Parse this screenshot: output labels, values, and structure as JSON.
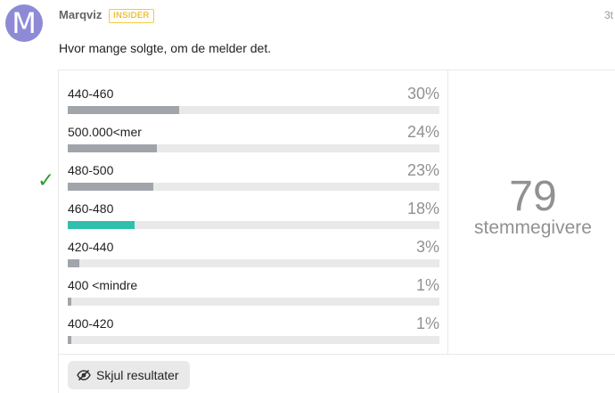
{
  "post": {
    "avatar_letter": "M",
    "username": "Marqviz",
    "badge": "INSIDER",
    "date": "3t",
    "text": "Hvor mange solgte, om de melder det."
  },
  "poll": {
    "options": [
      {
        "label": "440-460",
        "percent": 30,
        "percent_text": "30%",
        "voted": false
      },
      {
        "label": "500.000<mer",
        "percent": 24,
        "percent_text": "24%",
        "voted": false
      },
      {
        "label": "480-500",
        "percent": 23,
        "percent_text": "23%",
        "voted": false
      },
      {
        "label": "460-480",
        "percent": 18,
        "percent_text": "18%",
        "voted": true
      },
      {
        "label": "420-440",
        "percent": 3,
        "percent_text": "3%",
        "voted": false
      },
      {
        "label": "400 <mindre",
        "percent": 1,
        "percent_text": "1%",
        "voted": false
      },
      {
        "label": "400-420",
        "percent": 1,
        "percent_text": "1%",
        "voted": false
      }
    ],
    "voter_count": "79",
    "voter_label": "stemmegivere",
    "hide_button_label": "Skjul resultater"
  },
  "annotation": {
    "checkmark": "✓",
    "color": "#2f9e2f"
  },
  "colors": {
    "bar": "#a1a5ab",
    "bar_voted": "#2fc0ac",
    "track": "#e9e9e9"
  }
}
